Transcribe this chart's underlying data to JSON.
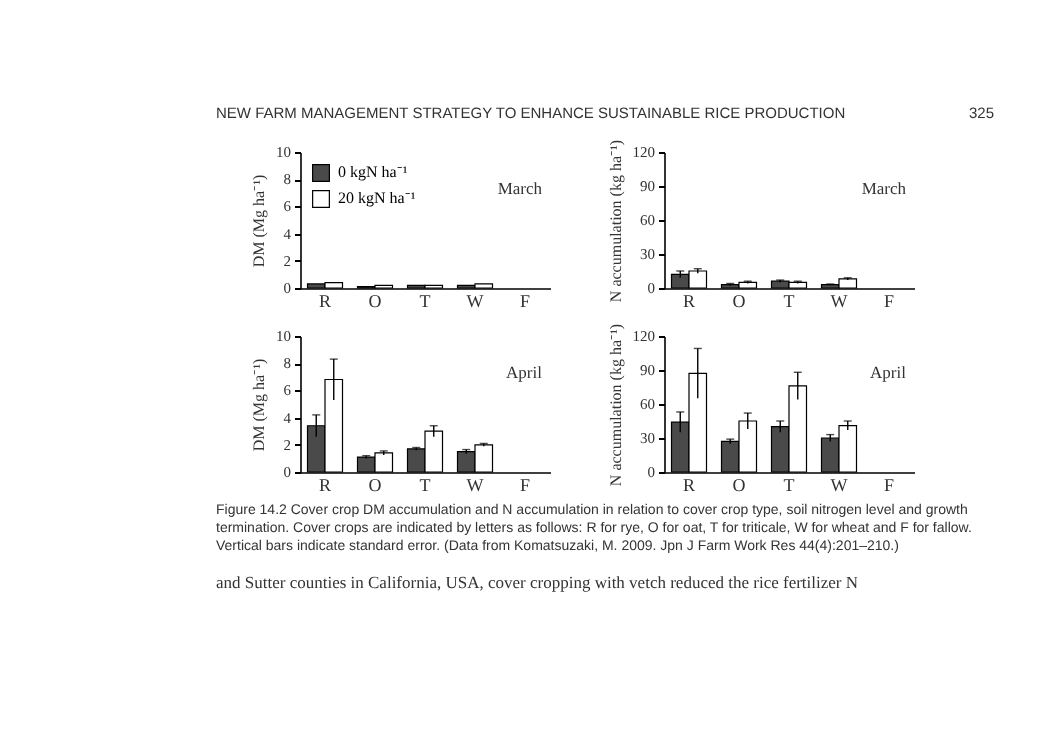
{
  "chart_data": [
    {
      "type": "bar",
      "subtitle": "March",
      "ylabel": "DM (Mg ha⁻¹)",
      "categories": [
        "R",
        "O",
        "T",
        "W",
        "F"
      ],
      "ylim": [
        0,
        10
      ],
      "yticks": [
        0,
        2,
        4,
        6,
        8,
        10
      ],
      "legend": "top",
      "annotations": [
        "NEW FARM MANAGEMENT STRATEGY TO ENHANCE SUSTAINABLE RICE PRODUCTION",
        "325"
      ],
      "series": [
        {
          "name": "0 kgN ha⁻¹",
          "color": "#4a4a4a",
          "values": [
            0.3,
            0.1,
            0.2,
            0.2,
            null
          ]
        },
        {
          "name": "20 kgN ha⁻¹",
          "color": "#ffffff",
          "values": [
            0.4,
            0.2,
            0.2,
            0.3,
            null
          ]
        }
      ]
    },
    {
      "type": "bar",
      "subtitle": "March",
      "ylabel": "N accumulation (kg ha⁻¹)",
      "categories": [
        "R",
        "O",
        "T",
        "W",
        "F"
      ],
      "ylim": [
        0,
        120
      ],
      "yticks": [
        0,
        30,
        60,
        90,
        120
      ],
      "series": [
        {
          "color": "#4a4a4a",
          "values": [
            12,
            3,
            6,
            3,
            null
          ],
          "errors": [
            3,
            1,
            1,
            0.5,
            null
          ]
        },
        {
          "color": "#ffffff",
          "values": [
            15,
            5,
            5,
            8,
            null
          ],
          "errors": [
            2,
            1,
            1,
            1,
            null
          ]
        }
      ]
    },
    {
      "type": "bar",
      "subtitle": "April",
      "ylabel": "DM (Mg ha⁻¹)",
      "categories": [
        "R",
        "O",
        "T",
        "W",
        "F"
      ],
      "ylim": [
        0,
        10
      ],
      "yticks": [
        0,
        2,
        4,
        6,
        8,
        10
      ],
      "series": [
        {
          "color": "#4a4a4a",
          "values": [
            3.4,
            1.1,
            1.7,
            1.5,
            null
          ],
          "errors": [
            0.8,
            0.1,
            0.1,
            0.15,
            null
          ]
        },
        {
          "color": "#ffffff",
          "values": [
            6.8,
            1.4,
            3.0,
            2.0,
            null
          ],
          "errors": [
            1.5,
            0.15,
            0.4,
            0.1,
            null
          ]
        }
      ]
    },
    {
      "type": "bar",
      "subtitle": "April",
      "ylabel": "N accumulation (kg ha⁻¹)",
      "categories": [
        "R",
        "O",
        "T",
        "W",
        "F"
      ],
      "ylim": [
        0,
        120
      ],
      "yticks": [
        0,
        30,
        60,
        90,
        120
      ],
      "annotations": [
        "Figure 14.2 Cover crop DM accumulation and N accumulation in relation to cover crop type, soil nitrogen level and growth termination. Cover crops are indicated by letters as follows: R for rye, O for oat, T for triticale, W for wheat and F for fallow. Vertical bars indicate standard error. (Data from Komatsuzaki, M. 2009. Jpn J Farm Work Res 44(4):201–210.)",
        "and Sutter counties in California, USA, cover cropping with vetch reduced the rice fertilizer N"
      ],
      "series": [
        {
          "color": "#4a4a4a",
          "values": [
            44,
            27,
            40,
            30,
            null
          ],
          "errors": [
            9,
            2,
            5,
            3,
            null
          ]
        },
        {
          "color": "#ffffff",
          "values": [
            87,
            45,
            76,
            41,
            null
          ],
          "errors": [
            22,
            7,
            12,
            4,
            null
          ]
        }
      ]
    }
  ]
}
